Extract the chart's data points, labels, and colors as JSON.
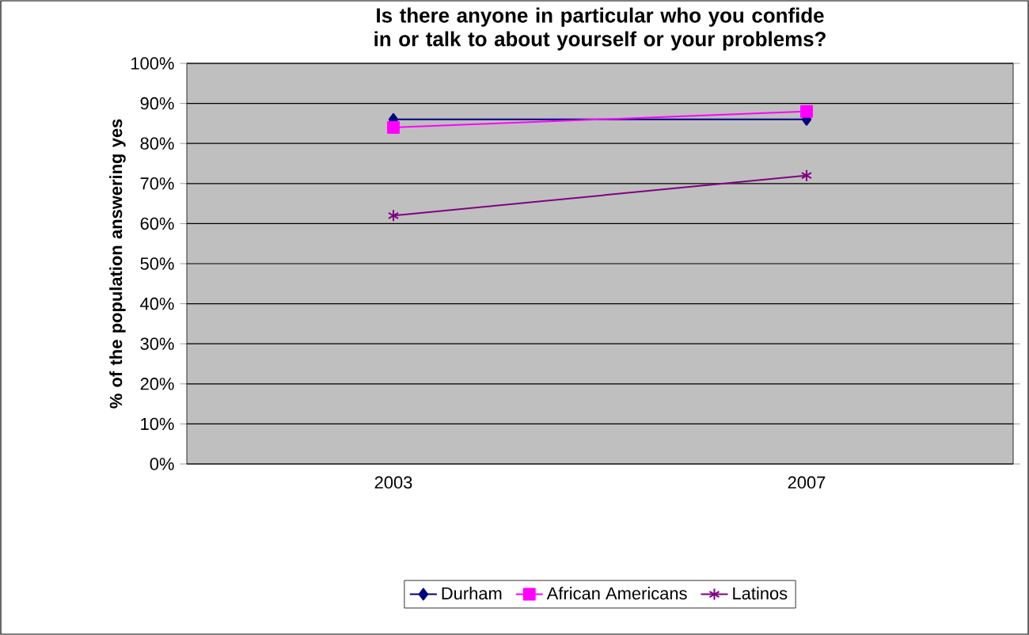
{
  "chart_data": {
    "type": "line",
    "title": "Is there anyone in particular who you confide in or talk to about yourself or your problems?",
    "ylabel": "% of the population answering yes",
    "categories": [
      "2003",
      "2007"
    ],
    "series": [
      {
        "name": "Durham",
        "color": "#000080",
        "marker": "diamond",
        "values": [
          86,
          86
        ]
      },
      {
        "name": "African Americans",
        "color": "#ff00ff",
        "marker": "square",
        "values": [
          84,
          88
        ]
      },
      {
        "name": "Latinos",
        "color": "#800080",
        "marker": "cross",
        "values": [
          62,
          72
        ]
      }
    ],
    "ylim": [
      0,
      100
    ],
    "yticks": [
      {
        "value": 0,
        "label": "0%"
      },
      {
        "value": 10,
        "label": "10%"
      },
      {
        "value": 20,
        "label": "20%"
      },
      {
        "value": 30,
        "label": "30%"
      },
      {
        "value": 40,
        "label": "40%"
      },
      {
        "value": 50,
        "label": "50%"
      },
      {
        "value": 60,
        "label": "60%"
      },
      {
        "value": 70,
        "label": "70%"
      },
      {
        "value": 80,
        "label": "80%"
      },
      {
        "value": 90,
        "label": "90%"
      },
      {
        "value": 100,
        "label": "100%"
      }
    ],
    "grid": "y",
    "legend": "bottom",
    "line_style": "solid"
  }
}
